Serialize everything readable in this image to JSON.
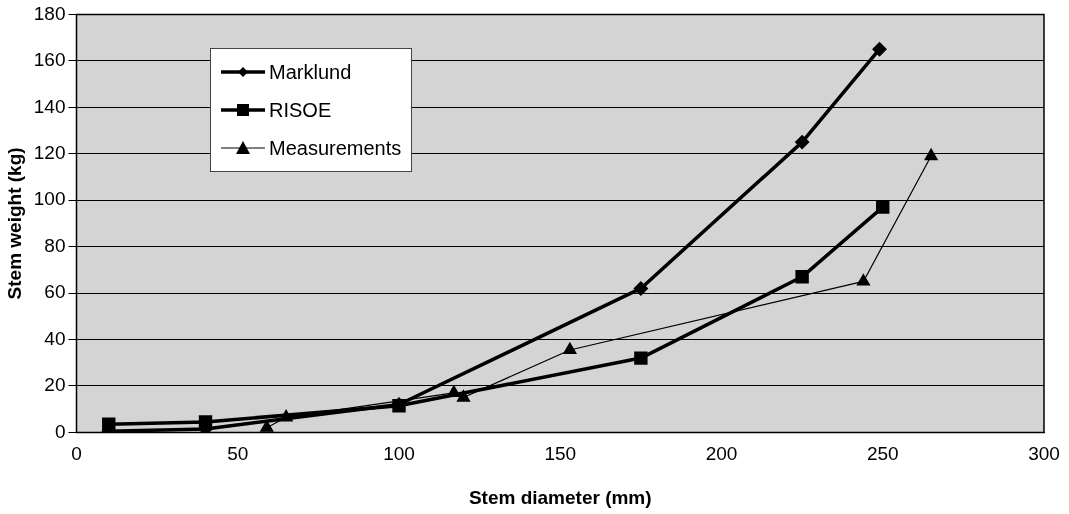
{
  "chart_data": {
    "type": "line",
    "xlabel": "Stem diameter (mm)",
    "ylabel": "Stem weight (kg)",
    "xlim": [
      0,
      300
    ],
    "xticks": [
      0,
      50,
      100,
      150,
      200,
      250,
      300
    ],
    "ylim": [
      0,
      180
    ],
    "yticks": [
      0,
      20,
      40,
      60,
      80,
      100,
      120,
      140,
      160,
      180
    ],
    "grid": "y",
    "legend": "top left",
    "series": [
      {
        "name": "Marklund",
        "color": "#000000",
        "marker": "diamond",
        "x": [
          10,
          40,
          100,
          175,
          225,
          249
        ],
        "values": [
          0.5,
          1.5,
          12,
          62,
          125,
          165
        ]
      },
      {
        "name": "RISOE",
        "color": "#000000",
        "marker": "square",
        "x": [
          10,
          40,
          100,
          175,
          225,
          250
        ],
        "values": [
          3.5,
          4.5,
          11.5,
          32,
          67,
          97
        ]
      },
      {
        "name": "Measurements",
        "color": "#000000",
        "marker": "triangle",
        "x": [
          59,
          65,
          117,
          120,
          153,
          244,
          265
        ],
        "values": [
          2,
          6.5,
          17,
          15,
          35.5,
          65,
          119
        ]
      }
    ]
  }
}
